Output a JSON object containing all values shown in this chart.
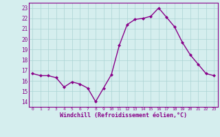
{
  "x": [
    0,
    1,
    2,
    3,
    4,
    5,
    6,
    7,
    8,
    9,
    10,
    11,
    12,
    13,
    14,
    15,
    16,
    17,
    18,
    19,
    20,
    21,
    22,
    23
  ],
  "y": [
    16.7,
    16.5,
    16.5,
    16.3,
    15.4,
    15.9,
    15.7,
    15.3,
    14.0,
    15.3,
    16.6,
    19.4,
    21.4,
    21.9,
    22.0,
    22.2,
    23.0,
    22.1,
    21.2,
    19.7,
    18.5,
    17.6,
    16.7,
    16.5
  ],
  "line_color": "#880088",
  "marker": "D",
  "marker_size": 2.0,
  "bg_color": "#d5eeee",
  "grid_color": "#aad4d4",
  "xlabel": "Windchill (Refroidissement éolien,°C)",
  "xlabel_color": "#880088",
  "tick_color": "#880088",
  "ylim": [
    13.5,
    23.5
  ],
  "yticks": [
    14,
    15,
    16,
    17,
    18,
    19,
    20,
    21,
    22,
    23
  ],
  "ytick_labels": [
    "14",
    "15",
    "16",
    "17",
    "18",
    "19",
    "20",
    "21",
    "22",
    "23"
  ],
  "xticks": [
    0,
    1,
    2,
    3,
    4,
    5,
    6,
    7,
    8,
    9,
    10,
    11,
    12,
    13,
    14,
    15,
    16,
    17,
    18,
    19,
    20,
    21,
    22,
    23
  ],
  "spine_color": "#880088",
  "axis_linewidth": 0.8,
  "line_width": 1.0,
  "grid_linewidth": 0.5
}
